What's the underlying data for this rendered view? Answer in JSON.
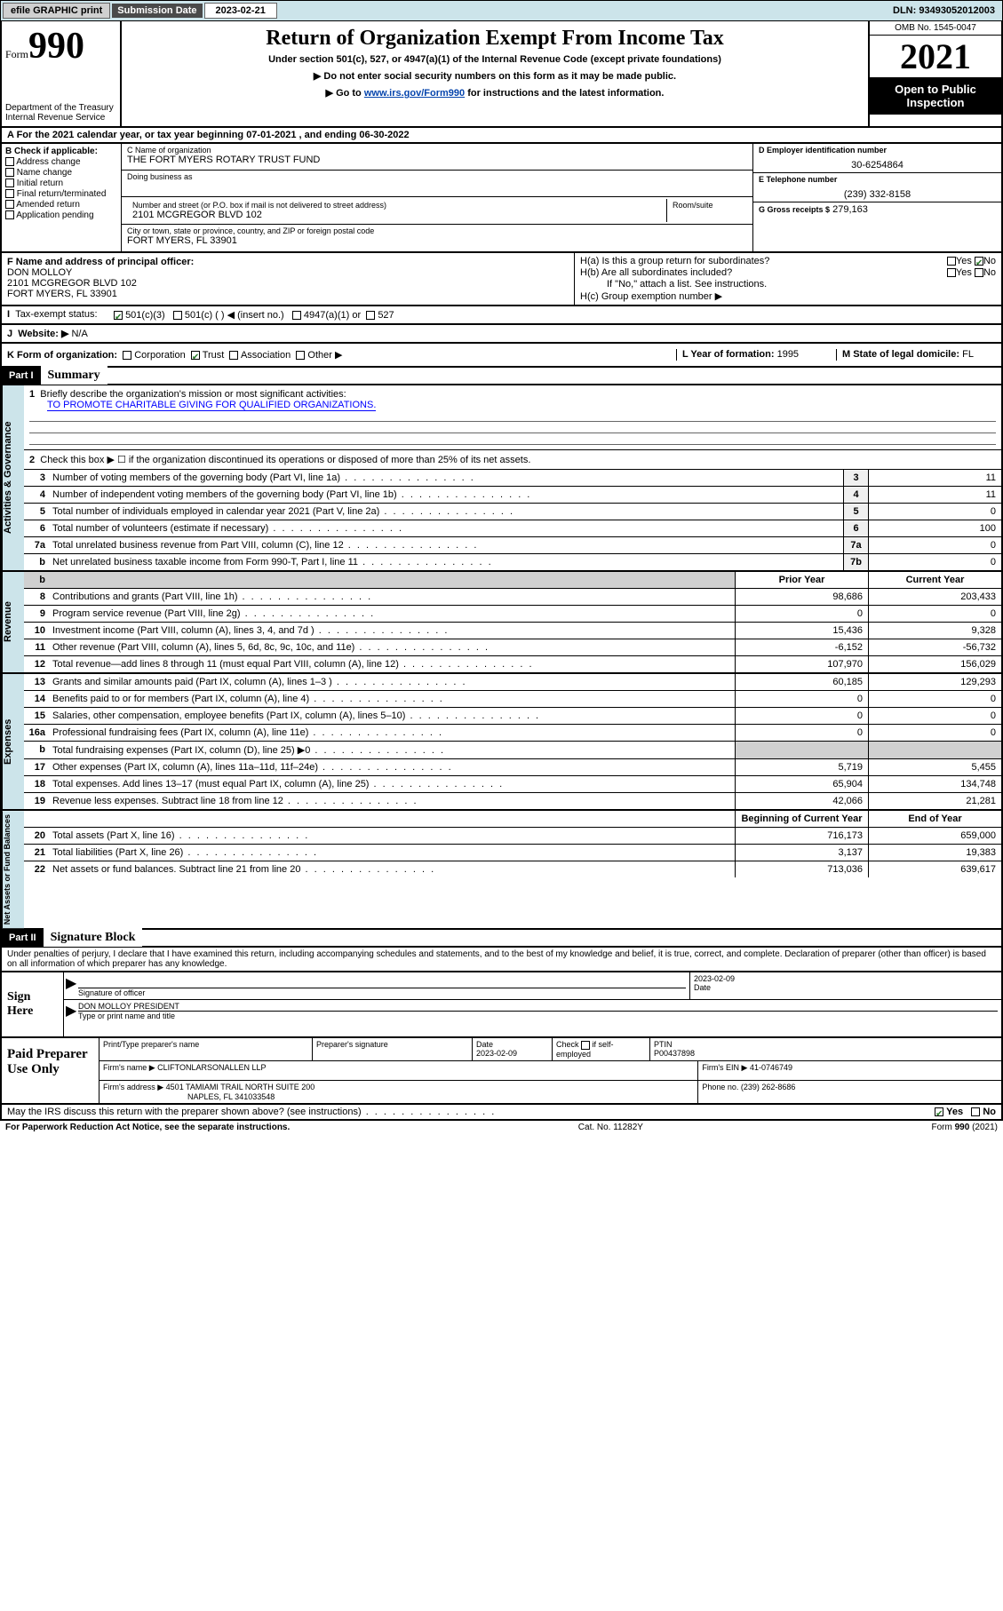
{
  "topbar": {
    "efile": "efile GRAPHIC print",
    "subm_lbl": "Submission Date",
    "subm_val": "2023-02-21",
    "dln": "DLN: 93493052012003"
  },
  "header": {
    "form_label": "Form",
    "form_num": "990",
    "dept": "Department of the Treasury\nInternal Revenue Service",
    "title": "Return of Organization Exempt From Income Tax",
    "sub1": "Under section 501(c), 527, or 4947(a)(1) of the Internal Revenue Code (except private foundations)",
    "sub2": "▶ Do not enter social security numbers on this form as it may be made public.",
    "sub3_a": "▶ Go to ",
    "sub3_link": "www.irs.gov/Form990",
    "sub3_b": " for instructions and the latest information.",
    "omb": "OMB No. 1545-0047",
    "year": "2021",
    "open": "Open to Public Inspection"
  },
  "row_a": "A For the 2021 calendar year, or tax year beginning 07-01-2021  , and ending 06-30-2022",
  "box_b": {
    "hdr": "B Check if applicable:",
    "items": [
      "Address change",
      "Name change",
      "Initial return",
      "Final return/terminated",
      "Amended return",
      "Application pending"
    ]
  },
  "box_c": {
    "name_lbl": "C Name of organization",
    "name": "THE FORT MYERS ROTARY TRUST FUND",
    "dba_lbl": "Doing business as",
    "addr_lbl": "Number and street (or P.O. box if mail is not delivered to street address)",
    "room_lbl": "Room/suite",
    "addr": "2101 MCGREGOR BLVD 102",
    "city_lbl": "City or town, state or province, country, and ZIP or foreign postal code",
    "city": "FORT MYERS, FL  33901"
  },
  "box_d": {
    "lbl": "D Employer identification number",
    "val": "30-6254864"
  },
  "box_e": {
    "lbl": "E Telephone number",
    "val": "(239) 332-8158"
  },
  "box_g": {
    "lbl": "G Gross receipts $",
    "val": "279,163"
  },
  "box_f": {
    "lbl": "F  Name and address of principal officer:",
    "name": "DON MOLLOY",
    "addr1": "2101 MCGREGOR BLVD 102",
    "addr2": "FORT MYERS, FL  33901"
  },
  "box_h": {
    "ha": "H(a)  Is this a group return for subordinates?",
    "hb": "H(b)  Are all subordinates included?",
    "hb2": "If \"No,\" attach a list. See instructions.",
    "hc": "H(c)  Group exemption number ▶",
    "yes": "Yes",
    "no": "No"
  },
  "box_i": {
    "lbl": "Tax-exempt status:",
    "o1": "501(c)(3)",
    "o2": "501(c) (  ) ◀ (insert no.)",
    "o3": "4947(a)(1) or",
    "o4": "527"
  },
  "box_j": {
    "lbl": "Website: ▶",
    "val": "N/A"
  },
  "box_k": {
    "lbl": "K Form of organization:",
    "o1": "Corporation",
    "o2": "Trust",
    "o3": "Association",
    "o4": "Other ▶"
  },
  "box_l": {
    "lbl": "L Year of formation:",
    "val": "1995"
  },
  "box_m": {
    "lbl": "M State of legal domicile:",
    "val": "FL"
  },
  "part1": {
    "hdr": "Part I",
    "title": "Summary",
    "l1a": "Briefly describe the organization's mission or most significant activities:",
    "l1b": "TO PROMOTE CHARITABLE GIVING FOR QUALIFIED ORGANIZATIONS.",
    "l2": "Check this box ▶ ☐  if the organization discontinued its operations or disposed of more than 25% of its net assets."
  },
  "gov_rows": [
    {
      "n": "3",
      "txt": "Number of voting members of the governing body (Part VI, line 1a)",
      "box": "3",
      "val": "11"
    },
    {
      "n": "4",
      "txt": "Number of independent voting members of the governing body (Part VI, line 1b)",
      "box": "4",
      "val": "11"
    },
    {
      "n": "5",
      "txt": "Total number of individuals employed in calendar year 2021 (Part V, line 2a)",
      "box": "5",
      "val": "0"
    },
    {
      "n": "6",
      "txt": "Total number of volunteers (estimate if necessary)",
      "box": "6",
      "val": "100"
    },
    {
      "n": "7a",
      "txt": "Total unrelated business revenue from Part VIII, column (C), line 12",
      "box": "7a",
      "val": "0"
    },
    {
      "n": "b",
      "txt": "Net unrelated business taxable income from Form 990-T, Part I, line 11",
      "box": "7b",
      "val": "0"
    }
  ],
  "fin_hdr": {
    "py": "Prior Year",
    "cy": "Current Year",
    "boy": "Beginning of Current Year",
    "eoy": "End of Year"
  },
  "revenue_rows": [
    {
      "n": "8",
      "txt": "Contributions and grants (Part VIII, line 1h)",
      "py": "98,686",
      "cy": "203,433"
    },
    {
      "n": "9",
      "txt": "Program service revenue (Part VIII, line 2g)",
      "py": "0",
      "cy": "0"
    },
    {
      "n": "10",
      "txt": "Investment income (Part VIII, column (A), lines 3, 4, and 7d )",
      "py": "15,436",
      "cy": "9,328"
    },
    {
      "n": "11",
      "txt": "Other revenue (Part VIII, column (A), lines 5, 6d, 8c, 9c, 10c, and 11e)",
      "py": "-6,152",
      "cy": "-56,732"
    },
    {
      "n": "12",
      "txt": "Total revenue—add lines 8 through 11 (must equal Part VIII, column (A), line 12)",
      "py": "107,970",
      "cy": "156,029"
    }
  ],
  "expense_rows": [
    {
      "n": "13",
      "txt": "Grants and similar amounts paid (Part IX, column (A), lines 1–3 )",
      "py": "60,185",
      "cy": "129,293"
    },
    {
      "n": "14",
      "txt": "Benefits paid to or for members (Part IX, column (A), line 4)",
      "py": "0",
      "cy": "0"
    },
    {
      "n": "15",
      "txt": "Salaries, other compensation, employee benefits (Part IX, column (A), lines 5–10)",
      "py": "0",
      "cy": "0"
    },
    {
      "n": "16a",
      "txt": "Professional fundraising fees (Part IX, column (A), line 11e)",
      "py": "0",
      "cy": "0"
    },
    {
      "n": "b",
      "txt": "Total fundraising expenses (Part IX, column (D), line 25) ▶0",
      "py": "",
      "cy": "",
      "grey": true
    },
    {
      "n": "17",
      "txt": "Other expenses (Part IX, column (A), lines 11a–11d, 11f–24e)",
      "py": "5,719",
      "cy": "5,455"
    },
    {
      "n": "18",
      "txt": "Total expenses. Add lines 13–17 (must equal Part IX, column (A), line 25)",
      "py": "65,904",
      "cy": "134,748"
    },
    {
      "n": "19",
      "txt": "Revenue less expenses. Subtract line 18 from line 12",
      "py": "42,066",
      "cy": "21,281"
    }
  ],
  "net_rows": [
    {
      "n": "20",
      "txt": "Total assets (Part X, line 16)",
      "py": "716,173",
      "cy": "659,000"
    },
    {
      "n": "21",
      "txt": "Total liabilities (Part X, line 26)",
      "py": "3,137",
      "cy": "19,383"
    },
    {
      "n": "22",
      "txt": "Net assets or fund balances. Subtract line 21 from line 20",
      "py": "713,036",
      "cy": "639,617"
    }
  ],
  "vtabs": {
    "gov": "Activities & Governance",
    "rev": "Revenue",
    "exp": "Expenses",
    "net": "Net Assets or Fund Balances"
  },
  "part2": {
    "hdr": "Part II",
    "title": "Signature Block",
    "decl": "Under penalties of perjury, I declare that I have examined this return, including accompanying schedules and statements, and to the best of my knowledge and belief, it is true, correct, and complete. Declaration of preparer (other than officer) is based on all information of which preparer has any knowledge."
  },
  "sign": {
    "lbl": "Sign Here",
    "sig_lbl": "Signature of officer",
    "date_lbl": "Date",
    "date": "2023-02-09",
    "name": "DON MOLLOY PRESIDENT",
    "name_lbl": "Type or print name and title"
  },
  "paid": {
    "lbl": "Paid Preparer Use Only",
    "h1": "Print/Type preparer's name",
    "h2": "Preparer's signature",
    "h3": "Date",
    "h3v": "2023-02-09",
    "h4a": "Check",
    "h4b": "if self-employed",
    "h5": "PTIN",
    "h5v": "P00437898",
    "firm_lbl": "Firm's name      ▶",
    "firm": "CLIFTONLARSONALLEN LLP",
    "ein_lbl": "Firm's EIN ▶",
    "ein": "41-0746749",
    "addr_lbl": "Firm's address ▶",
    "addr1": "4501 TAMIAMI TRAIL NORTH SUITE 200",
    "addr2": "NAPLES, FL  341033548",
    "ph_lbl": "Phone no.",
    "ph": "(239) 262-8686"
  },
  "discuss": {
    "txt": "May the IRS discuss this return with the preparer shown above? (see instructions)",
    "yes": "Yes",
    "no": "No"
  },
  "footer": {
    "l": "For Paperwork Reduction Act Notice, see the separate instructions.",
    "m": "Cat. No. 11282Y",
    "r": "Form 990 (2021)"
  }
}
